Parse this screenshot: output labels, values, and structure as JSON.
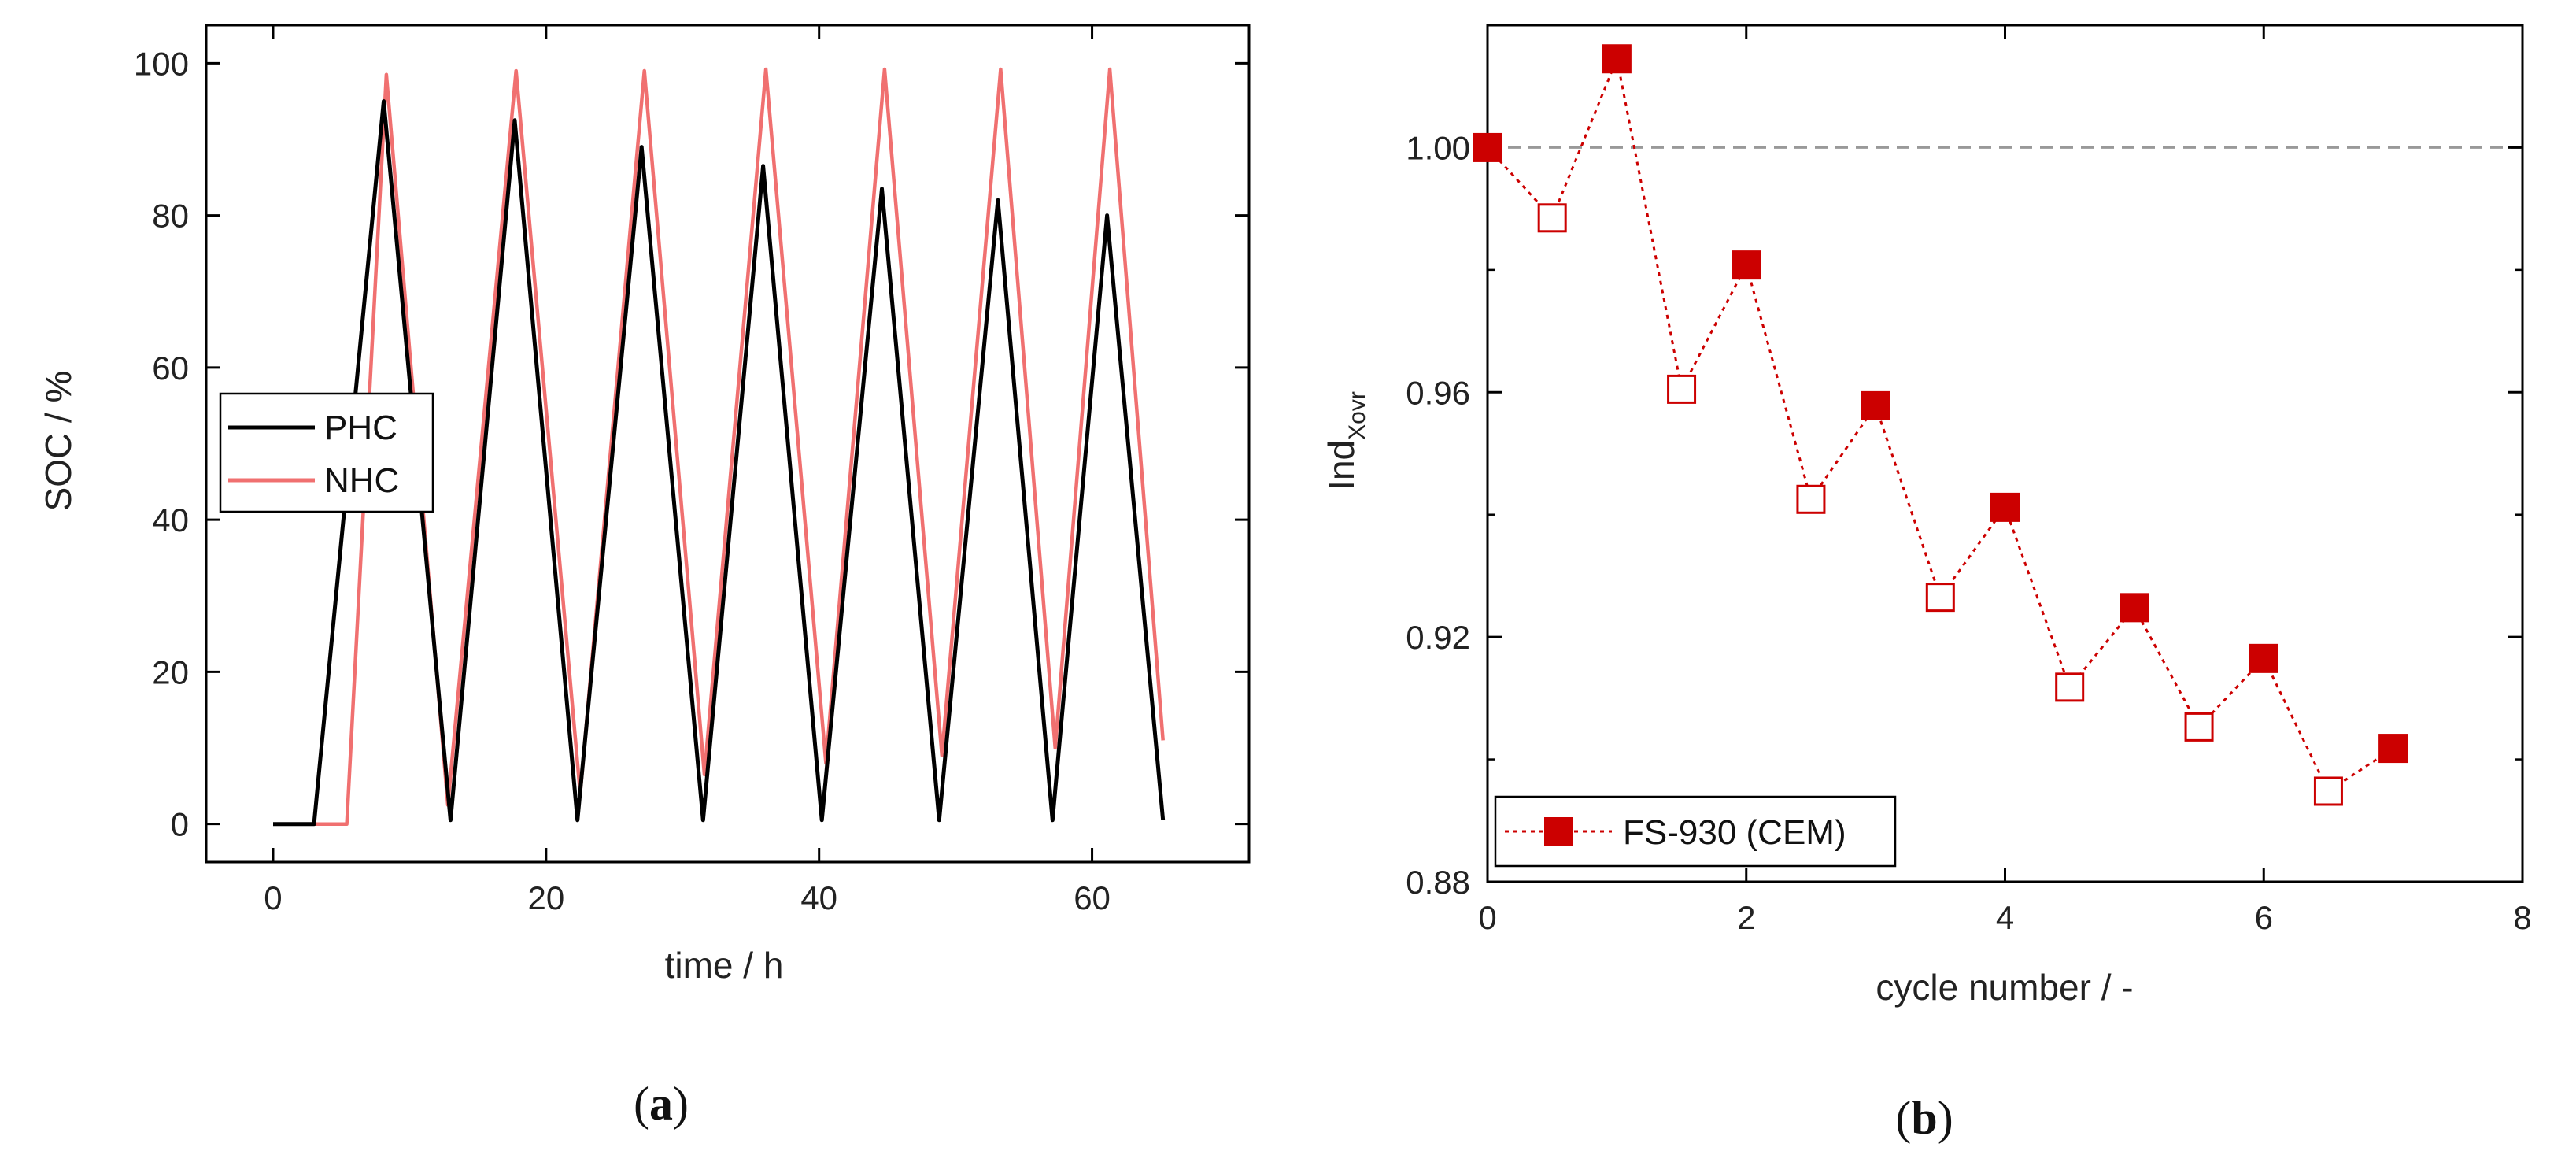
{
  "chart_data": [
    {
      "type": "line",
      "caption": "a",
      "xlabel": "time / h",
      "ylabel": "SOC / %",
      "xlim": [
        -4.9,
        71.5
      ],
      "ylim": [
        -5,
        105
      ],
      "xticks": [
        "0",
        "20",
        "40",
        "60"
      ],
      "xtick_values": [
        0,
        20,
        40,
        60
      ],
      "yticks": [
        "0",
        "20",
        "40",
        "60",
        "80",
        "100"
      ],
      "ytick_values": [
        0,
        20,
        40,
        60,
        80,
        100
      ],
      "legend_position": "center-left",
      "series": [
        {
          "name": "PHC",
          "color": "#000000",
          "x": [
            0,
            3,
            8.1,
            13,
            17.7,
            22.3,
            27,
            31.5,
            35.9,
            40.2,
            44.6,
            48.8,
            53.1,
            57.1,
            61.1,
            65.2
          ],
          "y": [
            0,
            0,
            95,
            0.5,
            92.5,
            0.5,
            89,
            0.5,
            86.5,
            0.5,
            83.5,
            0.5,
            82,
            0.5,
            80,
            0.5
          ]
        },
        {
          "name": "NHC",
          "color": "#f07070",
          "x": [
            0,
            5.4,
            8.3,
            12.8,
            17.8,
            22.5,
            27.2,
            31.6,
            36.1,
            40.5,
            44.8,
            49,
            53.3,
            57.3,
            61.3,
            65.2
          ],
          "y": [
            0,
            0,
            98.5,
            2.5,
            99,
            4,
            99,
            6.5,
            99.2,
            8,
            99.2,
            9,
            99.2,
            10,
            99.2,
            11
          ]
        }
      ]
    },
    {
      "type": "scatter",
      "caption": "b",
      "xlabel": "cycle number / -",
      "ylabel_main": "Ind",
      "ylabel_sub": "Xovr",
      "xlim": [
        0,
        8
      ],
      "ylim": [
        0.88,
        1.02
      ],
      "xticks": [
        "0",
        "2",
        "4",
        "6",
        "8"
      ],
      "xtick_values": [
        0,
        2,
        4,
        6,
        8
      ],
      "yticks": [
        "0.88",
        "0.92",
        "0.96",
        "1.00"
      ],
      "ytick_values": [
        0.88,
        0.92,
        0.96,
        1.0
      ],
      "reference_line": 1.0,
      "legend_position": "bottom-left",
      "series": [
        {
          "name": "FS-930 (CEM)",
          "color": "#cc0000",
          "x": [
            0,
            0.5,
            1,
            1.5,
            2,
            2.5,
            3,
            3.5,
            4,
            4.5,
            5,
            5.5,
            6,
            6.5,
            7
          ],
          "y": [
            1.0,
            0.9885,
            1.0145,
            0.9605,
            0.9808,
            0.9425,
            0.9578,
            0.9265,
            0.9412,
            0.9118,
            0.9248,
            0.9053,
            0.9165,
            0.8948,
            0.9018
          ],
          "filled": [
            true,
            false,
            true,
            false,
            true,
            false,
            true,
            false,
            true,
            false,
            true,
            false,
            true,
            false,
            true
          ]
        }
      ]
    }
  ]
}
